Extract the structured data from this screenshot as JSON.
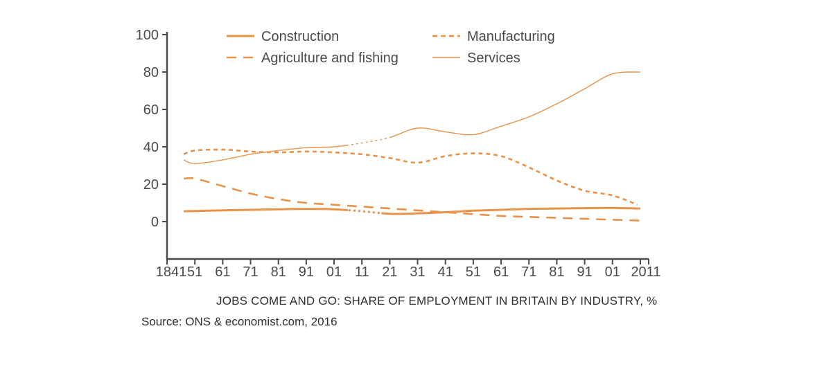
{
  "chart_data": {
    "type": "line",
    "caption": "JOBS COME AND GO: SHARE OF EMPLOYMENT IN BRITAIN BY INDUSTRY, %",
    "source": "Source: ONS & economist.com, 2016",
    "x_tick_labels": [
      "1841",
      "51",
      "61",
      "71",
      "81",
      "91",
      "01",
      "11",
      "21",
      "31",
      "41",
      "51",
      "61",
      "71",
      "81",
      "91",
      "01",
      "2011"
    ],
    "x": [
      1841,
      1851,
      1861,
      1871,
      1881,
      1891,
      1901,
      1911,
      1921,
      1931,
      1941,
      1951,
      1961,
      1971,
      1981,
      1991,
      2001,
      2011
    ],
    "yticks": [
      0,
      20,
      40,
      60,
      80,
      100
    ],
    "ylim": [
      -20,
      100
    ],
    "xlim": [
      1841,
      2014
    ],
    "legend_position": "top",
    "grid": false,
    "colors": {
      "series": "#e8924a",
      "axis": "#4a4a4a",
      "text": "#3c3c3c"
    },
    "series": [
      {
        "name": "Construction",
        "style": "solid-thick",
        "x": [
          1847,
          1861,
          1871,
          1881,
          1891,
          1901,
          1911,
          1921,
          1931,
          1941,
          1951,
          1961,
          1971,
          1981,
          1991,
          2001,
          2011
        ],
        "values": [
          5.5,
          6,
          6.3,
          6.6,
          6.8,
          6.6,
          5.5,
          4.2,
          4.4,
          5,
          5.8,
          6.3,
          6.8,
          7,
          7.2,
          7.3,
          7
        ],
        "dotted_range": [
          1906,
          1918
        ]
      },
      {
        "name": "Manufacturing",
        "style": "dotted",
        "x": [
          1847,
          1851,
          1861,
          1871,
          1881,
          1891,
          1901,
          1911,
          1921,
          1931,
          1941,
          1951,
          1961,
          1971,
          1981,
          1991,
          2001,
          2010
        ],
        "values": [
          36,
          38,
          38.5,
          37.5,
          37,
          37.5,
          37,
          36,
          34,
          31.5,
          35,
          36.5,
          35,
          29,
          22,
          16.5,
          14,
          9
        ]
      },
      {
        "name": "Agriculture and fishing",
        "style": "dashed",
        "x": [
          1847,
          1851,
          1861,
          1871,
          1881,
          1891,
          1901,
          1911,
          1921,
          1931,
          1941,
          1951,
          1961,
          1971,
          1981,
          1991,
          2001,
          2011
        ],
        "values": [
          23,
          23,
          19,
          15,
          12,
          10,
          9,
          8,
          7,
          6,
          5,
          4,
          3,
          2.5,
          2,
          1.5,
          1,
          0.5
        ],
        "dotted_range": [
          1906,
          1921
        ]
      },
      {
        "name": "Services",
        "style": "solid-thin",
        "x": [
          1847,
          1851,
          1861,
          1871,
          1881,
          1891,
          1901,
          1911,
          1921,
          1931,
          1941,
          1951,
          1961,
          1971,
          1981,
          1991,
          2001,
          2011
        ],
        "values": [
          33,
          31,
          33,
          36,
          38,
          39.5,
          40,
          42,
          45,
          50,
          48,
          46.5,
          51,
          56,
          63,
          71,
          79,
          80
        ],
        "dotted_range": [
          1906,
          1921
        ]
      }
    ]
  }
}
